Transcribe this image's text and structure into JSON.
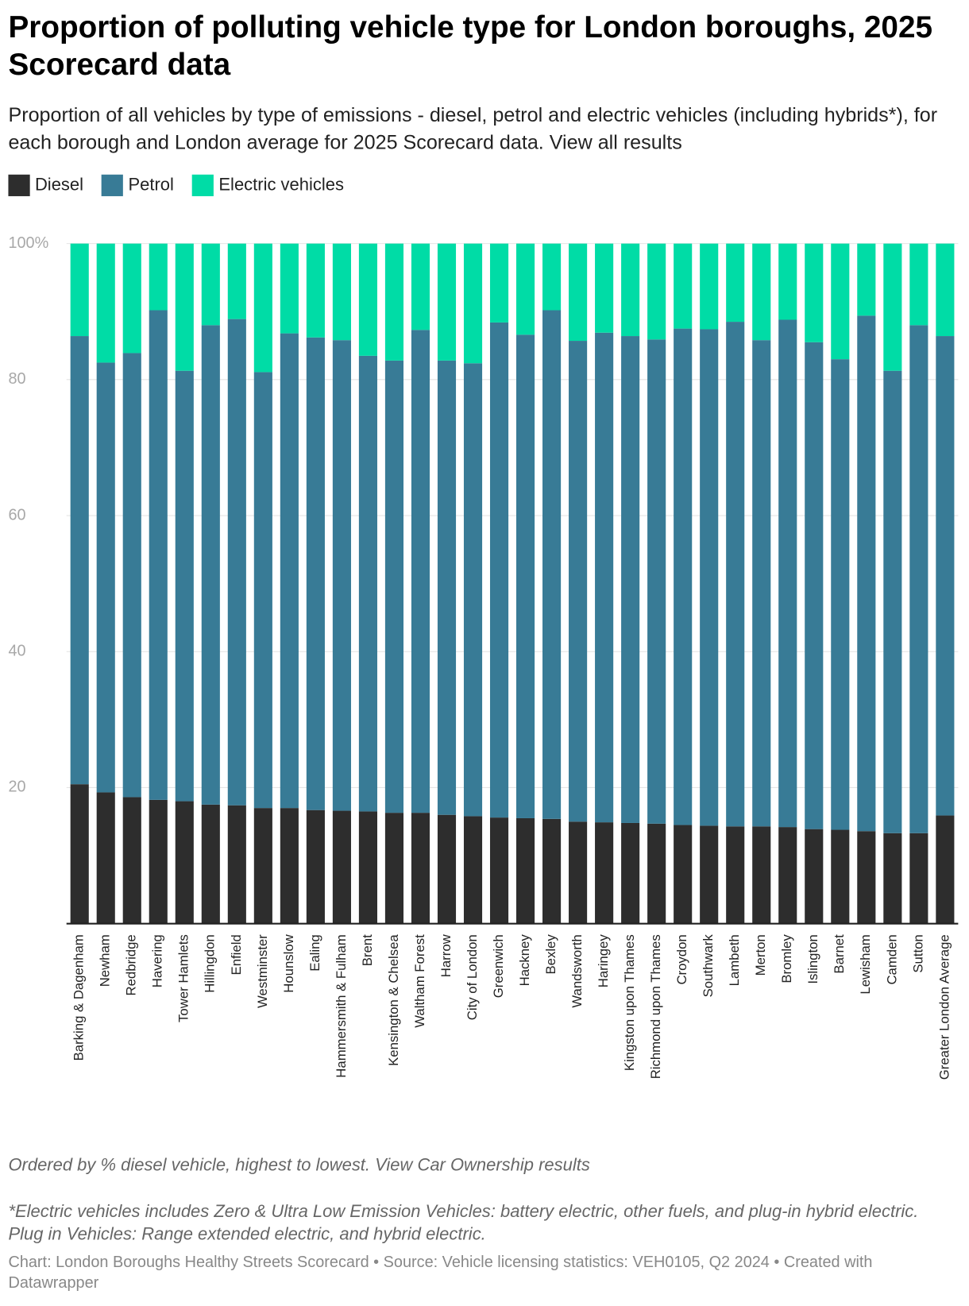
{
  "chart_data": {
    "type": "stacked_bar",
    "title": "Proportion of polluting vehicle type for London boroughs, 2025 Scorecard data",
    "subtitle": "Proportion of all vehicles by type of emissions - diesel, petrol and electric vehicles (including hybrids*), for each borough and London average for 2025 Scorecard data. View all results",
    "categories": [
      "Barking & Dagenham",
      "Newham",
      "Redbridge",
      "Havering",
      "Tower Hamlets",
      "Hillingdon",
      "Enfield",
      "Westminster",
      "Hounslow",
      "Ealing",
      "Hammersmith & Fulham",
      "Brent",
      "Kensington & Chelsea",
      "Waltham Forest",
      "Harrow",
      "City of London",
      "Greenwich",
      "Hackney",
      "Bexley",
      "Wandsworth",
      "Haringey",
      "Kingston upon Thames",
      "Richmond upon Thames",
      "Croydon",
      "Southwark",
      "Lambeth",
      "Merton",
      "Bromley",
      "Islington",
      "Barnet",
      "Lewisham",
      "Camden",
      "Sutton",
      "Greater London Average"
    ],
    "series": [
      {
        "name": "Diesel",
        "color": "#2d2d2d",
        "values": [
          20.5,
          19.3,
          18.6,
          18.2,
          18.0,
          17.5,
          17.4,
          17.0,
          17.0,
          16.7,
          16.6,
          16.5,
          16.3,
          16.3,
          16.0,
          15.8,
          15.6,
          15.5,
          15.4,
          15.0,
          14.9,
          14.8,
          14.7,
          14.5,
          14.4,
          14.3,
          14.3,
          14.2,
          13.9,
          13.8,
          13.6,
          13.3,
          13.3,
          15.9
        ]
      },
      {
        "name": "Petrol",
        "color": "#387b96",
        "values": [
          65.9,
          63.2,
          65.3,
          72.0,
          63.3,
          70.5,
          71.5,
          64.1,
          69.8,
          69.5,
          69.2,
          67.0,
          66.5,
          71.0,
          66.8,
          66.6,
          72.8,
          71.1,
          74.8,
          70.7,
          72.0,
          71.6,
          71.2,
          73.0,
          73.0,
          74.2,
          71.5,
          74.6,
          71.6,
          69.2,
          75.8,
          68.0,
          74.7,
          70.5
        ]
      },
      {
        "name": "Electric vehicles",
        "color": "#00dca6",
        "values": [
          13.6,
          17.5,
          16.1,
          9.8,
          18.7,
          12.0,
          11.1,
          18.9,
          13.2,
          13.8,
          14.2,
          16.5,
          17.2,
          12.7,
          17.2,
          17.6,
          11.6,
          13.4,
          9.8,
          14.3,
          13.1,
          13.6,
          14.1,
          12.5,
          12.6,
          11.5,
          14.2,
          11.2,
          14.5,
          17.0,
          10.6,
          18.7,
          12.0,
          13.6
        ]
      }
    ],
    "ylim": [
      0,
      100
    ],
    "yticks": [
      {
        "value": 100,
        "label": "100%"
      },
      80,
      60,
      40,
      20
    ],
    "grid": true,
    "notes": [
      "Ordered by % diesel vehicle, highest to lowest. View Car Ownership results",
      "*Electric vehicles includes Zero & Ultra Low Emission Vehicles: battery electric, other fuels, and plug-in hybrid electric. Plug in Vehicles: Range extended electric, and hybrid electric."
    ],
    "source": "Chart: London Boroughs Healthy Streets Scorecard • Source: Vehicle licensing statistics: VEH0105, Q2 2024 • Created with Datawrapper"
  }
}
